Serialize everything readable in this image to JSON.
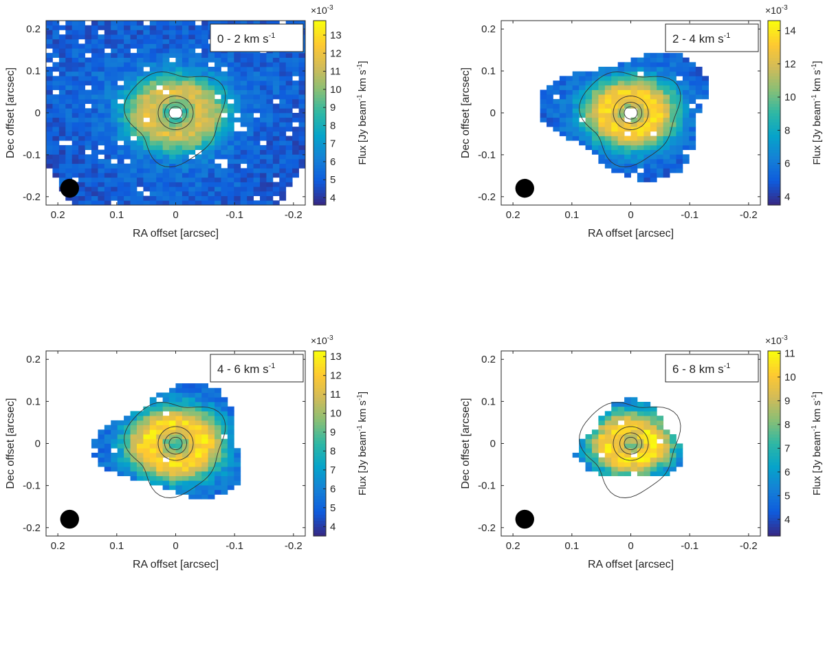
{
  "chart_data": [
    {
      "type": "heatmap",
      "velocity_label": "0 - 2 km s",
      "velocity_unit_sup": "-1",
      "xlabel": "RA offset [arcsec]",
      "ylabel": "Dec offset [arcsec]",
      "colorbar_label": "Flux [Jy beam",
      "colorbar_label_sup1": "-1",
      "colorbar_label_mid": " km s",
      "colorbar_label_sup2": "-1",
      "colorbar_label_end": "]",
      "colorbar_exponent": "×10",
      "colorbar_exponent_sup": "-3",
      "xlim": [
        0.22,
        -0.22
      ],
      "ylim": [
        -0.22,
        0.22
      ],
      "x_ticks": [
        0.2,
        0.1,
        0,
        -0.1,
        -0.2
      ],
      "x_tick_labels": [
        "0.2",
        "0.1",
        "0",
        "-0.1",
        "-0.2"
      ],
      "y_ticks": [
        0.2,
        0.1,
        0,
        -0.1,
        -0.2
      ],
      "y_tick_labels": [
        "0.2",
        "0.1",
        "0",
        "-0.1",
        "-0.2"
      ],
      "clim": [
        3.6,
        13.8
      ],
      "colorbar_ticks": [
        4,
        5,
        6,
        7,
        8,
        9,
        10,
        11,
        12,
        13
      ],
      "colorbar_tick_labels": [
        "4",
        "5",
        "6",
        "7",
        "8",
        "9",
        "10",
        "11",
        "12",
        "13"
      ],
      "extent_radius": 0.3,
      "peak": 11.5,
      "falloff": 0.05,
      "beam_center": [
        0.18,
        -0.18
      ],
      "beam_radius": 0.016
    },
    {
      "type": "heatmap",
      "velocity_label": "2 - 4 km s",
      "velocity_unit_sup": "-1",
      "xlabel": "RA offset [arcsec]",
      "ylabel": "Dec offset [arcsec]",
      "colorbar_label": "Flux [Jy beam",
      "colorbar_label_sup1": "-1",
      "colorbar_label_mid": " km s",
      "colorbar_label_sup2": "-1",
      "colorbar_label_end": "]",
      "colorbar_exponent": "×10",
      "colorbar_exponent_sup": "-3",
      "xlim": [
        0.22,
        -0.22
      ],
      "ylim": [
        -0.22,
        0.22
      ],
      "x_ticks": [
        0.2,
        0.1,
        0,
        -0.1,
        -0.2
      ],
      "x_tick_labels": [
        "0.2",
        "0.1",
        "0",
        "-0.1",
        "-0.2"
      ],
      "y_ticks": [
        0.2,
        0.1,
        0,
        -0.1,
        -0.2
      ],
      "y_tick_labels": [
        "0.2",
        "0.1",
        "0",
        "-0.1",
        "-0.2"
      ],
      "clim": [
        3.5,
        14.6
      ],
      "colorbar_ticks": [
        4,
        6,
        8,
        10,
        12,
        14
      ],
      "colorbar_tick_labels": [
        "4",
        "6",
        "8",
        "10",
        "12",
        "14"
      ],
      "extent_radius": 0.135,
      "peak": 13.5,
      "falloff": 0.045,
      "beam_center": [
        0.18,
        -0.18
      ],
      "beam_radius": 0.016
    },
    {
      "type": "heatmap",
      "velocity_label": "4 - 6 km s",
      "velocity_unit_sup": "-1",
      "xlabel": "RA offset [arcsec]",
      "ylabel": "Dec offset [arcsec]",
      "colorbar_label": "Flux [Jy beam",
      "colorbar_label_sup1": "-1",
      "colorbar_label_mid": " km s",
      "colorbar_label_sup2": "-1",
      "colorbar_label_end": "]",
      "colorbar_exponent": "×10",
      "colorbar_exponent_sup": "-3",
      "xlim": [
        0.22,
        -0.22
      ],
      "ylim": [
        -0.22,
        0.22
      ],
      "x_ticks": [
        0.2,
        0.1,
        0,
        -0.1,
        -0.2
      ],
      "x_tick_labels": [
        "0.2",
        "0.1",
        "0",
        "-0.1",
        "-0.2"
      ],
      "y_ticks": [
        0.2,
        0.1,
        0,
        -0.1,
        -0.2
      ],
      "y_tick_labels": [
        "0.2",
        "0.1",
        "0",
        "-0.1",
        "-0.2"
      ],
      "clim": [
        3.5,
        13.3
      ],
      "colorbar_ticks": [
        4,
        5,
        6,
        7,
        8,
        9,
        10,
        11,
        12,
        13
      ],
      "colorbar_tick_labels": [
        "4",
        "5",
        "6",
        "7",
        "8",
        "9",
        "10",
        "11",
        "12",
        "13"
      ],
      "extent_radius": 0.12,
      "peak": 12.5,
      "falloff": 0.05,
      "beam_center": [
        0.18,
        -0.18
      ],
      "beam_radius": 0.016
    },
    {
      "type": "heatmap",
      "velocity_label": "6 - 8 km s",
      "velocity_unit_sup": "-1",
      "xlabel": "RA offset [arcsec]",
      "ylabel": "Dec offset [arcsec]",
      "colorbar_label": "Flux [Jy beam",
      "colorbar_label_sup1": "-1",
      "colorbar_label_mid": " km s",
      "colorbar_label_sup2": "-1",
      "colorbar_label_end": "]",
      "colorbar_exponent": "×10",
      "colorbar_exponent_sup": "-3",
      "xlim": [
        0.22,
        -0.22
      ],
      "ylim": [
        -0.22,
        0.22
      ],
      "x_ticks": [
        0.2,
        0.1,
        0,
        -0.1,
        -0.2
      ],
      "x_tick_labels": [
        "0.2",
        "0.1",
        "0",
        "-0.1",
        "-0.2"
      ],
      "y_ticks": [
        0.2,
        0.1,
        0,
        -0.1,
        -0.2
      ],
      "y_tick_labels": [
        "0.2",
        "0.1",
        "0",
        "-0.1",
        "-0.2"
      ],
      "clim": [
        3.3,
        11.1
      ],
      "colorbar_ticks": [
        4,
        5,
        6,
        7,
        8,
        9,
        10,
        11
      ],
      "colorbar_tick_labels": [
        "4",
        "5",
        "6",
        "7",
        "8",
        "9",
        "10",
        "11"
      ],
      "extent_radius": 0.085,
      "peak": 10.5,
      "falloff": 0.04,
      "beam_center": [
        0.18,
        -0.18
      ],
      "beam_radius": 0.016
    }
  ],
  "colors": {
    "colormap": [
      "#352a87",
      "#0f5cdd",
      "#1481d6",
      "#06a4ca",
      "#2eb7a4",
      "#87bf77",
      "#d1bb59",
      "#fec832",
      "#f9fb0e"
    ],
    "contour": "#333333",
    "beam": "#000000",
    "axes": "#222222"
  }
}
